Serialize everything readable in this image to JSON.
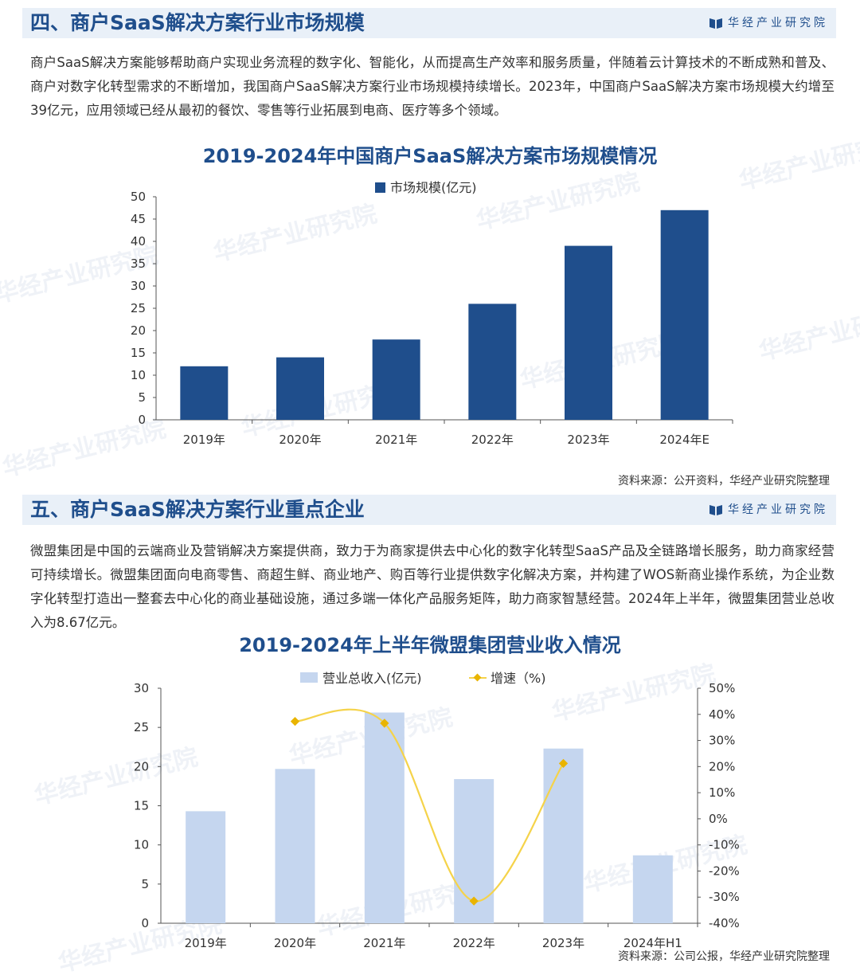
{
  "brand": "华经产业研究院",
  "watermark": "华经产业研究院",
  "section4": {
    "title": "四、商户SaaS解决方案行业市场规模",
    "paragraph": "商户SaaS解决方案能够帮助商户实现业务流程的数字化、智能化，从而提高生产效率和服务质量，伴随着云计算技术的不断成熟和普及、商户对数字化转型需求的不断增加，我国商户SaaS解决方案行业市场规模持续增长。2023年，中国商户SaaS解决方案市场规模大约增至39亿元，应用领域已经从最初的餐饮、零售等行业拓展到电商、医疗等多个领域。",
    "source": "资料来源：公开资料，华经产业研究院整理"
  },
  "section5": {
    "title": "五、商户SaaS解决方案行业重点企业",
    "paragraph": "微盟集团是中国的云端商业及营销解决方案提供商，致力于为商家提供去中心化的数字化转型SaaS产品及全链路增长服务，助力商家经营可持续增长。微盟集团面向电商零售、商超生鲜、商业地产、购百等行业提供数字化解决方案，并构建了WOS新商业操作系统，为企业数字化转型打造出一整套去中心化的商业基础设施，通过多端一体化产品服务矩阵，助力商家智慧经营。2024年上半年，微盟集团营业总收入为8.67亿元。",
    "source": "资料来源：公司公报，华经产业研究院整理"
  },
  "chart_data": [
    {
      "type": "bar",
      "title": "2019-2024年中国商户SaaS解决方案市场规模情况",
      "categories": [
        "2019年",
        "2020年",
        "2021年",
        "2022年",
        "2023年",
        "2024年E"
      ],
      "series": [
        {
          "name": "市场规模(亿元)",
          "values": [
            12,
            14,
            18,
            26,
            39,
            47
          ],
          "color": "#1f4e8c"
        }
      ],
      "ylim": [
        0,
        50
      ],
      "yticks": [
        0,
        5,
        10,
        15,
        20,
        25,
        30,
        35,
        40,
        45,
        50
      ],
      "legend": "top-center",
      "grid": false
    },
    {
      "type": "bar",
      "title": "2019-2024年上半年微盟集团营业收入情况",
      "categories": [
        "2019年",
        "2020年",
        "2021年",
        "2022年",
        "2023年",
        "2024年H1"
      ],
      "series": [
        {
          "name": "营业总收入(亿元)",
          "type": "bar",
          "axis": "left",
          "values": [
            14.3,
            19.7,
            26.9,
            18.4,
            22.3,
            8.67
          ],
          "color": "#c5d6ef"
        },
        {
          "name": "增速（%)",
          "type": "line",
          "axis": "right",
          "values": [
            null,
            37.3,
            36.6,
            -31.5,
            21.2,
            null
          ],
          "color": "#f5d34a"
        }
      ],
      "ylim": [
        0,
        30
      ],
      "yticks": [
        0,
        5,
        10,
        15,
        20,
        25,
        30
      ],
      "y2lim": [
        -40,
        50
      ],
      "y2ticks": [
        "-40%",
        "-30%",
        "-20%",
        "-10%",
        "0%",
        "10%",
        "20%",
        "30%",
        "40%",
        "50%"
      ],
      "legend": "top-center",
      "grid": false
    }
  ]
}
